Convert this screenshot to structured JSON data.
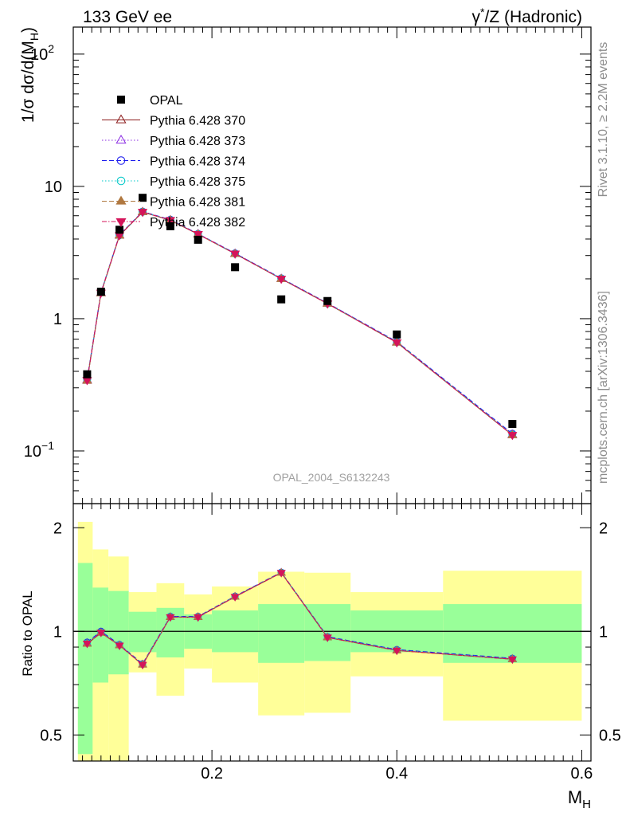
{
  "header": {
    "left": "133 GeV ee",
    "right_prefix": "γ",
    "right_sup": "*",
    "right_suffix": "/Z (Hadronic)"
  },
  "side_labels": {
    "rivet": "Rivet 3.1.10, ≥ 2.2M events",
    "mcplots": "mcplots.cern.ch [arXiv:1306.3436]"
  },
  "watermark": "OPAL_2004_S6132243",
  "colors": {
    "opal": "#000000",
    "yellow_band": "#ffff99",
    "green_band": "#99ff99"
  },
  "chart_data": [
    {
      "type": "line",
      "title": "",
      "ylabel": "1/σ dσ/d(M_H)",
      "yscale": "log",
      "ylim": [
        0.04,
        160
      ],
      "xlim": [
        0.05,
        0.61
      ],
      "y_ticks": [
        "10^-1",
        "1",
        "10",
        "10^2"
      ],
      "legend_position": "top-left",
      "x": [
        0.065,
        0.08,
        0.1,
        0.125,
        0.155,
        0.185,
        0.225,
        0.275,
        0.325,
        0.4,
        0.525
      ],
      "data": {
        "name": "OPAL",
        "color": "#000000",
        "values": [
          0.38,
          1.6,
          4.7,
          8.2,
          5.0,
          3.95,
          2.45,
          1.4,
          1.36,
          0.76,
          0.16
        ]
      },
      "series": [
        {
          "name": "Pythia 6.428 370",
          "color": "#8b1a1a",
          "marker": "open-triangle",
          "dash": "",
          "values": [
            0.34,
            1.56,
            4.25,
            6.4,
            5.55,
            4.35,
            3.1,
            2.0,
            1.3,
            0.66,
            0.132
          ]
        },
        {
          "name": "Pythia 6.428 373",
          "color": "#8a2be2",
          "marker": "open-triangle",
          "dash": "1.5,2.5",
          "values": [
            0.345,
            1.57,
            4.28,
            6.42,
            5.57,
            4.37,
            3.11,
            2.01,
            1.31,
            0.665,
            0.133
          ]
        },
        {
          "name": "Pythia 6.428 374",
          "color": "#1a1aee",
          "marker": "open-circle",
          "dash": "6,3",
          "values": [
            0.35,
            1.58,
            4.3,
            6.45,
            5.6,
            4.38,
            3.12,
            2.02,
            1.31,
            0.67,
            0.135
          ]
        },
        {
          "name": "Pythia 6.428 375",
          "color": "#00c8c8",
          "marker": "open-circle",
          "dash": "1.5,2.5",
          "values": [
            0.345,
            1.57,
            4.27,
            6.42,
            5.57,
            4.36,
            3.1,
            2.01,
            1.3,
            0.665,
            0.133
          ]
        },
        {
          "name": "Pythia 6.428 381",
          "color": "#b07840",
          "marker": "filled-triangle",
          "dash": "6,3",
          "values": [
            0.342,
            1.56,
            4.26,
            6.4,
            5.55,
            4.35,
            3.09,
            2.0,
            1.3,
            0.66,
            0.132
          ]
        },
        {
          "name": "Pythia 6.428 382",
          "color": "#d4145a",
          "marker": "filled-triangle-down",
          "dash": "6,2,1.5,2",
          "values": [
            0.343,
            1.57,
            4.27,
            6.41,
            5.56,
            4.36,
            3.1,
            2.0,
            1.3,
            0.662,
            0.132
          ]
        }
      ]
    },
    {
      "type": "line",
      "ylabel": "Ratio to OPAL",
      "xlabel": "M_H",
      "yscale": "log",
      "ylim": [
        0.42,
        2.35
      ],
      "xlim": [
        0.05,
        0.61
      ],
      "y_ticks": [
        "0.5",
        "1",
        "2"
      ],
      "x_ticks": [
        "0.2",
        "0.4",
        "0.6"
      ],
      "bins": [
        {
          "lo": 0.055,
          "hi": 0.071,
          "green": [
            0.44,
            1.58
          ],
          "yellow": [
            0.34,
            2.08
          ]
        },
        {
          "lo": 0.071,
          "hi": 0.088,
          "green": [
            0.71,
            1.34
          ],
          "yellow": [
            0.34,
            1.73
          ]
        },
        {
          "lo": 0.088,
          "hi": 0.11,
          "green": [
            0.75,
            1.31
          ],
          "yellow": [
            0.36,
            1.65
          ]
        },
        {
          "lo": 0.11,
          "hi": 0.14,
          "green": [
            0.87,
            1.14
          ],
          "yellow": [
            0.76,
            1.3
          ]
        },
        {
          "lo": 0.14,
          "hi": 0.17,
          "green": [
            0.84,
            1.17
          ],
          "yellow": [
            0.65,
            1.38
          ]
        },
        {
          "lo": 0.17,
          "hi": 0.2,
          "green": [
            0.89,
            1.12
          ],
          "yellow": [
            0.78,
            1.28
          ]
        },
        {
          "lo": 0.2,
          "hi": 0.25,
          "green": [
            0.87,
            1.15
          ],
          "yellow": [
            0.71,
            1.35
          ]
        },
        {
          "lo": 0.25,
          "hi": 0.3,
          "green": [
            0.81,
            1.2
          ],
          "yellow": [
            0.57,
            1.49
          ]
        },
        {
          "lo": 0.3,
          "hi": 0.35,
          "green": [
            0.82,
            1.2
          ],
          "yellow": [
            0.58,
            1.48
          ]
        },
        {
          "lo": 0.35,
          "hi": 0.45,
          "green": [
            0.87,
            1.15
          ],
          "yellow": [
            0.74,
            1.3
          ]
        },
        {
          "lo": 0.45,
          "hi": 0.6,
          "green": [
            0.81,
            1.2
          ],
          "yellow": [
            0.55,
            1.5
          ]
        }
      ],
      "x": [
        0.065,
        0.08,
        0.1,
        0.125,
        0.155,
        0.185,
        0.225,
        0.275,
        0.325,
        0.4,
        0.525
      ],
      "series": [
        {
          "name": "Pythia 6.428 370",
          "values": [
            0.92,
            0.99,
            0.91,
            0.8,
            1.1,
            1.1,
            1.26,
            1.48,
            0.96,
            0.88,
            0.83
          ]
        },
        {
          "name": "Pythia 6.428 373",
          "values": [
            0.925,
            0.995,
            0.912,
            0.802,
            1.102,
            1.102,
            1.262,
            1.482,
            0.962,
            0.882,
            0.832
          ]
        },
        {
          "name": "Pythia 6.428 374",
          "values": [
            0.93,
            1.0,
            0.915,
            0.805,
            1.105,
            1.105,
            1.265,
            1.485,
            0.965,
            0.885,
            0.835
          ]
        },
        {
          "name": "Pythia 6.428 375",
          "values": [
            0.925,
            0.995,
            0.912,
            0.802,
            1.102,
            1.102,
            1.262,
            1.482,
            0.962,
            0.882,
            0.832
          ]
        },
        {
          "name": "Pythia 6.428 381",
          "values": [
            0.92,
            0.99,
            0.91,
            0.8,
            1.1,
            1.1,
            1.26,
            1.48,
            0.96,
            0.88,
            0.83
          ]
        },
        {
          "name": "Pythia 6.428 382",
          "values": [
            0.922,
            0.992,
            0.91,
            0.8,
            1.1,
            1.1,
            1.26,
            1.48,
            0.96,
            0.88,
            0.83
          ]
        }
      ]
    }
  ]
}
